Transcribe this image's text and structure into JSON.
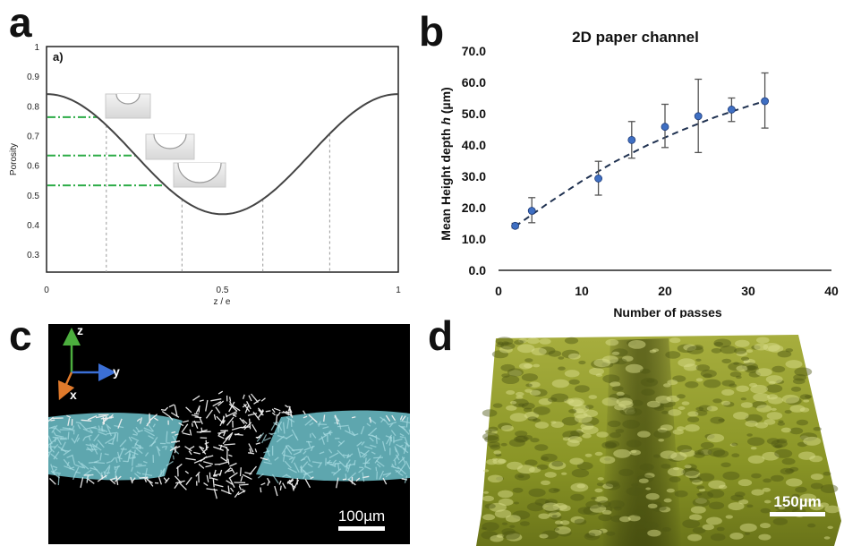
{
  "panel_labels": {
    "a": "a",
    "b": "b",
    "c": "c",
    "d": "d"
  },
  "chart_data": [
    {
      "panel": "a",
      "type": "line",
      "inset_label": "a)",
      "xlabel": "z / e",
      "ylabel": "Porosity",
      "x_ticks": [
        "0",
        "0.5",
        "1"
      ],
      "y_ticks": [
        "1",
        "0.9",
        "0.8",
        "0.7",
        "0.6",
        "0.5",
        "0.4",
        "0.3"
      ],
      "xlim": [
        0,
        1
      ],
      "ylim": [
        0.24,
        1.0
      ],
      "curve_max": 0.84,
      "curve_min": 0.435,
      "dashdot_levels": [
        0.762,
        0.633,
        0.532
      ],
      "vertical_markers_x": [
        0.17,
        0.385,
        0.615,
        0.805
      ],
      "colors": {
        "curve": "#444444",
        "dashdot": "#2bab46",
        "markers": "#999999"
      }
    },
    {
      "panel": "b",
      "type": "scatter",
      "title": "2D paper channel",
      "xlabel": "Number of passes",
      "ylabel": "Mean Height depth h (µm)",
      "ylabel_parts": [
        "Mean Height depth ",
        "h",
        " (µm)"
      ],
      "x_ticks": [
        "0",
        "10",
        "20",
        "30",
        "40"
      ],
      "y_ticks": [
        "0.0",
        "10.0",
        "20.0",
        "30.0",
        "40.0",
        "50.0",
        "60.0",
        "70.0"
      ],
      "xlim": [
        0,
        40
      ],
      "ylim": [
        0,
        70
      ],
      "x": [
        2,
        4,
        12,
        16,
        20,
        24,
        28,
        32
      ],
      "y": [
        14.2,
        19.0,
        29.3,
        41.6,
        45.8,
        49.2,
        51.3,
        54.0
      ],
      "err_low": [
        13.5,
        15.2,
        24.0,
        35.8,
        39.2,
        37.6,
        47.5,
        45.4
      ],
      "err_high": [
        15.0,
        23.2,
        34.8,
        47.5,
        53.0,
        61.0,
        55.0,
        63.0
      ],
      "trend_x": [
        2,
        6,
        10,
        14,
        18,
        22,
        26,
        30,
        32
      ],
      "trend_y": [
        14.0,
        21.5,
        28.5,
        34.7,
        40.1,
        44.7,
        48.9,
        52.4,
        54.0
      ],
      "colors": {
        "points": "#3f6fc2",
        "trend": "#1f3150",
        "error": "#555555"
      }
    }
  ],
  "panel_c": {
    "axis_labels": {
      "z": "z",
      "y": "y",
      "x": "x"
    },
    "scale_bar": "100µm",
    "colors": {
      "background": "#000000",
      "fibers": "#f2f2f2",
      "channel": "#6fc3cc",
      "z_axis": "#4cae3e",
      "y_axis": "#3b6fd6",
      "x_axis": "#e07a2b"
    }
  },
  "panel_d": {
    "scale_bar": "150µm",
    "colors": {
      "surface": "#8f9b2a",
      "shadow": "#5a6418",
      "highlight": "#d8dc8a"
    }
  }
}
